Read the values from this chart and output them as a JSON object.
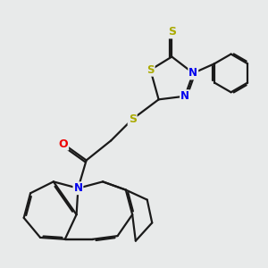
{
  "background_color": "#e8eaea",
  "atom_colors": {
    "S": "#aaaa00",
    "N": "#0000ee",
    "O": "#ee0000",
    "C": "#1a1a1a"
  },
  "bond_color": "#1a1a1a",
  "bond_lw": 1.6,
  "figsize": [
    3.0,
    3.0
  ],
  "dpi": 100,
  "xlim": [
    0,
    10
  ],
  "ylim": [
    0,
    10
  ]
}
